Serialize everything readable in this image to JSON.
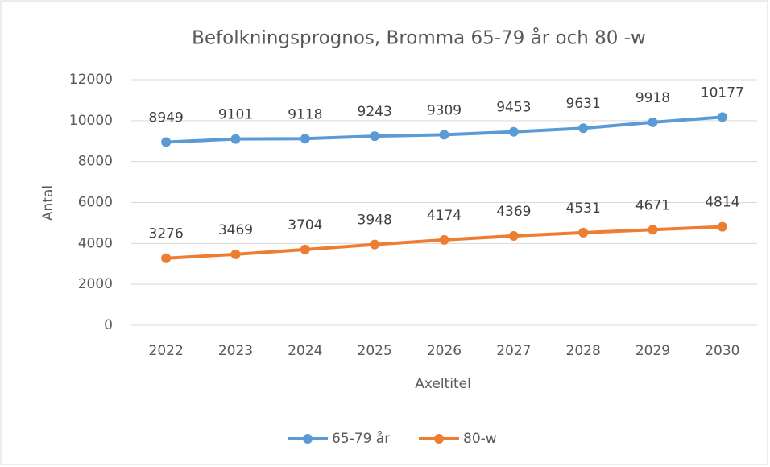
{
  "chart_data": {
    "type": "line",
    "title": "Befolkningsprognos, Bromma 65-79 år och 80 -w",
    "x_label": "Axeltitel",
    "y_label": "Antal",
    "categories": [
      "2022",
      "2023",
      "2024",
      "2025",
      "2026",
      "2027",
      "2028",
      "2029",
      "2030"
    ],
    "series": [
      {
        "name": "65-79 år",
        "color": "#5b9bd5",
        "values": [
          8949,
          9101,
          9118,
          9243,
          9309,
          9453,
          9631,
          9918,
          10177
        ]
      },
      {
        "name": "80-w",
        "color": "#ed7d31",
        "values": [
          3276,
          3469,
          3704,
          3948,
          4174,
          4369,
          4531,
          4671,
          4814
        ]
      }
    ],
    "ylim": [
      0,
      12000
    ],
    "yticks": [
      0,
      2000,
      4000,
      6000,
      8000,
      10000,
      12000
    ],
    "grid": true,
    "legend": "bottom"
  }
}
